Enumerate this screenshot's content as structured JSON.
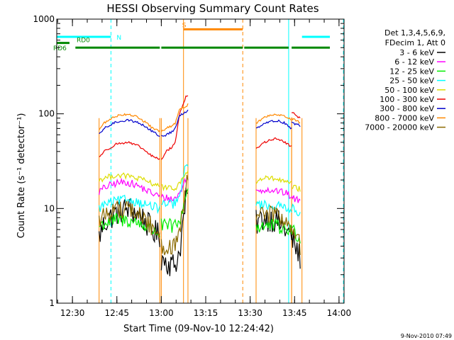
{
  "chart_data": {
    "type": "line",
    "title": "HESSI Observing Summary Count Rates",
    "xlabel": "Start Time (09-Nov-10 12:24:42)",
    "ylabel": "Count Rate (s⁻¹ detector⁻¹)",
    "y_scale": "log",
    "ylim": [
      1,
      1000
    ],
    "xlim_minutes_after_1224_42": [
      0,
      97
    ],
    "x_ticks": [
      "12:30",
      "12:45",
      "13:00",
      "13:15",
      "13:30",
      "13:45",
      "14:00"
    ],
    "y_ticks": [
      "1",
      "10",
      "100",
      "1000"
    ],
    "grid": false,
    "timestamp": "9-Nov-2010 07:49",
    "legend": {
      "header": [
        "Det 1,3,4,5,6,9,",
        "FDecim 1, Att 0"
      ],
      "entries": [
        {
          "label": "3 - 6 keV",
          "color": "#000000"
        },
        {
          "label": "6 - 12 keV",
          "color": "#ff00ff"
        },
        {
          "label": "12 - 25 keV",
          "color": "#00ee00"
        },
        {
          "label": "25 - 50 keV",
          "color": "#00ffff"
        },
        {
          "label": "50 - 100 keV",
          "color": "#dddd00"
        },
        {
          "label": "100 - 300 keV",
          "color": "#ee0000"
        },
        {
          "label": "300 - 800 keV",
          "color": "#0000cc"
        },
        {
          "label": "800 - 7000 keV",
          "color": "#ff8800"
        },
        {
          "label": "7000 - 20000 keV",
          "color": "#8b6a00"
        }
      ]
    },
    "flags": [
      {
        "name": "N",
        "color": "#00ffff",
        "y": 650,
        "segments": [
          [
            "12:24:42",
            "12:43:00"
          ],
          [
            "13:47:30",
            "14:01:30"
          ]
        ]
      },
      {
        "name": "S",
        "color": "#ff8800",
        "y": 780,
        "segments": [
          [
            "13:07:30",
            "13:27:30"
          ]
        ]
      },
      {
        "name": "RD0",
        "color": "#008800",
        "y": 560,
        "segments": [
          [
            "12:24:42",
            "12:29:00"
          ]
        ]
      },
      {
        "name": "RD6",
        "color": "#008800",
        "y": 500,
        "segments": [
          [
            "12:31:00",
            "12:59:30"
          ],
          [
            "13:00:00",
            "13:27:30"
          ],
          [
            "13:28:00",
            "13:43:00"
          ],
          [
            "13:44:00",
            "14:01:30"
          ]
        ]
      }
    ],
    "event_lines": [
      {
        "time": "12:24:42",
        "color": "#00ffff",
        "style": "solid"
      },
      {
        "time": "12:43:00",
        "color": "#00ffff",
        "style": "dashed"
      },
      {
        "time": "13:07:30",
        "color": "#ff8800",
        "style": "solid"
      },
      {
        "time": "13:27:30",
        "color": "#ff8800",
        "style": "dashed"
      },
      {
        "time": "13:43:00",
        "color": "#00ffff",
        "style": "solid"
      },
      {
        "time": "14:01:30",
        "color": "#00ffff",
        "style": "dashed"
      }
    ],
    "data_segments": [
      {
        "start": "12:39:00",
        "end": "12:59:30"
      },
      {
        "start": "13:00:00",
        "end": "13:09:00"
      },
      {
        "start": "13:32:00",
        "end": "13:44:00"
      },
      {
        "start": "13:44:00",
        "end": "13:47:30"
      }
    ],
    "series": [
      {
        "name": "3 - 6 keV",
        "color": "#000000",
        "noise": 0.14,
        "segments": [
          {
            "x": [
              14.3,
              16,
              20,
              24,
              28,
              32,
              34.8
            ],
            "y": [
              5,
              7,
              9,
              10,
              8.5,
              6,
              5
            ]
          },
          {
            "x": [
              35.3,
              37,
              39,
              40,
              41.5,
              43.5,
              44.3
            ],
            "y": [
              3,
              2.8,
              2.5,
              2.6,
              3.5,
              12,
              14
            ]
          },
          {
            "x": [
              67.3,
              70,
              74,
              77,
              79.3
            ],
            "y": [
              7,
              8,
              7.5,
              6,
              5
            ]
          },
          {
            "x": [
              79.3,
              80.5,
              82.2
            ],
            "y": [
              5,
              4,
              3
            ]
          }
        ]
      },
      {
        "name": "6 - 12 keV",
        "color": "#ff00ff",
        "noise": 0.04,
        "segments": [
          {
            "x": [
              14.3,
              16,
              20,
              24,
              28,
              32,
              34.8
            ],
            "y": [
              15,
              16.5,
              18.5,
              19,
              17,
              14.5,
              13.5
            ]
          },
          {
            "x": [
              35.3,
              37,
              39,
              40,
              41.5,
              43.5,
              44.3
            ],
            "y": [
              13,
              13,
              12.5,
              12.8,
              14.5,
              20,
              22
            ]
          },
          {
            "x": [
              67.3,
              70,
              74,
              77,
              79.3
            ],
            "y": [
              15,
              16,
              15.5,
              14.5,
              13.5
            ]
          },
          {
            "x": [
              79.3,
              80.5,
              82.2
            ],
            "y": [
              13,
              12.5,
              12
            ]
          }
        ]
      },
      {
        "name": "12 - 25 keV",
        "color": "#00ee00",
        "noise": 0.08,
        "segments": [
          {
            "x": [
              14.3,
              16,
              20,
              24,
              28,
              32,
              34.8
            ],
            "y": [
              6.5,
              7,
              7.5,
              7.5,
              7,
              6,
              5.5
            ]
          },
          {
            "x": [
              35.3,
              37,
              39,
              40,
              41.5,
              43.5,
              44.3
            ],
            "y": [
              6.5,
              6.5,
              6.5,
              6.5,
              7,
              14,
              16
            ]
          },
          {
            "x": [
              67.3,
              70,
              74,
              77,
              79.3
            ],
            "y": [
              6.5,
              6.5,
              6.5,
              6,
              6
            ]
          },
          {
            "x": [
              79.3,
              80.5,
              82.2
            ],
            "y": [
              6,
              5.5,
              5
            ]
          }
        ]
      },
      {
        "name": "25 - 50 keV",
        "color": "#00ffff",
        "noise": 0.05,
        "segments": [
          {
            "x": [
              14.3,
              16,
              20,
              24,
              28,
              32,
              34.8
            ],
            "y": [
              10,
              11,
              12,
              12.5,
              11.5,
              10.5,
              10
            ]
          },
          {
            "x": [
              35.3,
              37,
              39,
              40,
              41.5,
              43.5,
              44.3
            ],
            "y": [
              11,
              11,
              11,
              11.5,
              13,
              28,
              31
            ]
          },
          {
            "x": [
              67.3,
              70,
              74,
              77,
              79.3
            ],
            "y": [
              11,
              11,
              10.5,
              10.5,
              10
            ]
          },
          {
            "x": [
              79.3,
              80.5,
              82.2
            ],
            "y": [
              10,
              9.5,
              9
            ]
          }
        ]
      },
      {
        "name": "50 - 100 keV",
        "color": "#dddd00",
        "noise": 0.03,
        "segments": [
          {
            "x": [
              14.3,
              16,
              20,
              24,
              28,
              32,
              34.8
            ],
            "y": [
              20,
              21,
              22.5,
              22,
              20.5,
              18.5,
              17.5
            ]
          },
          {
            "x": [
              35.3,
              37,
              39,
              40,
              41.5,
              43.5,
              44.3
            ],
            "y": [
              17,
              16.5,
              16,
              16.5,
              18.5,
              23,
              25
            ]
          },
          {
            "x": [
              67.3,
              70,
              74,
              77,
              79.3
            ],
            "y": [
              19,
              21,
              20.5,
              19,
              18
            ]
          },
          {
            "x": [
              79.3,
              80.5,
              82.2
            ],
            "y": [
              17,
              16.5,
              16
            ]
          }
        ]
      },
      {
        "name": "100 - 300 keV",
        "color": "#ee0000",
        "noise": 0.012,
        "segments": [
          {
            "x": [
              14.3,
              16,
              20,
              24,
              28,
              32,
              34.8
            ],
            "y": [
              35,
              40,
              48,
              50,
              45,
              36,
              33
            ]
          },
          {
            "x": [
              35.3,
              37,
              39,
              40,
              41.5,
              43.5,
              44.3
            ],
            "y": [
              33,
              40,
              45,
              50,
              100,
              150,
              160
            ]
          },
          {
            "x": [
              67.3,
              70,
              74,
              77,
              79.3
            ],
            "y": [
              42,
              50,
              55,
              50,
              45
            ]
          },
          {
            "x": [
              79.3,
              80.5,
              82.2
            ],
            "y": [
              105,
              98,
              90
            ]
          }
        ]
      },
      {
        "name": "300 - 800 keV",
        "color": "#0000cc",
        "noise": 0.012,
        "segments": [
          {
            "x": [
              14.3,
              16,
              20,
              24,
              28,
              32,
              34.8
            ],
            "y": [
              60,
              70,
              82,
              86,
              80,
              66,
              58
            ]
          },
          {
            "x": [
              35.3,
              37,
              39,
              40,
              41.5,
              43.5,
              44.3
            ],
            "y": [
              58,
              60,
              65,
              70,
              95,
              105,
              110
            ]
          },
          {
            "x": [
              67.3,
              70,
              74,
              77,
              79.3
            ],
            "y": [
              70,
              80,
              85,
              80,
              70
            ]
          },
          {
            "x": [
              79.3,
              80.5,
              82.2
            ],
            "y": [
              80,
              78,
              75
            ]
          }
        ]
      },
      {
        "name": "800 - 7000 keV",
        "color": "#ff8800",
        "noise": 0.012,
        "segments": [
          {
            "x": [
              14.3,
              16,
              20,
              24,
              28,
              32,
              34.8
            ],
            "y": [
              68,
              80,
              95,
              100,
              90,
              72,
              65
            ]
          },
          {
            "x": [
              35.3,
              37,
              39,
              40,
              41.5,
              43.5,
              44.3
            ],
            "y": [
              65,
              70,
              75,
              80,
              110,
              120,
              125
            ]
          },
          {
            "x": [
              67.3,
              70,
              74,
              77,
              79.3
            ],
            "y": [
              80,
              92,
              100,
              95,
              85
            ]
          },
          {
            "x": [
              79.3,
              80.5,
              82.2
            ],
            "y": [
              90,
              86,
              80
            ]
          }
        ]
      },
      {
        "name": "7000 - 20000 keV",
        "color": "#8b6a00",
        "noise": 0.1,
        "segments": [
          {
            "x": [
              14.3,
              16,
              20,
              24,
              28,
              32,
              34.8
            ],
            "y": [
              7.5,
              8.5,
              10,
              10,
              8.5,
              6.5,
              5.5
            ]
          },
          {
            "x": [
              35.3,
              37,
              39,
              40,
              41.5,
              43.5,
              44.3
            ],
            "y": [
              4,
              4,
              3.8,
              4,
              5,
              16,
              20
            ]
          },
          {
            "x": [
              67.3,
              70,
              74,
              77,
              79.3
            ],
            "y": [
              8,
              9,
              8.5,
              7.5,
              6.5
            ]
          },
          {
            "x": [
              79.3,
              80.5,
              82.2
            ],
            "y": [
              6,
              5,
              4
            ]
          }
        ]
      }
    ]
  }
}
